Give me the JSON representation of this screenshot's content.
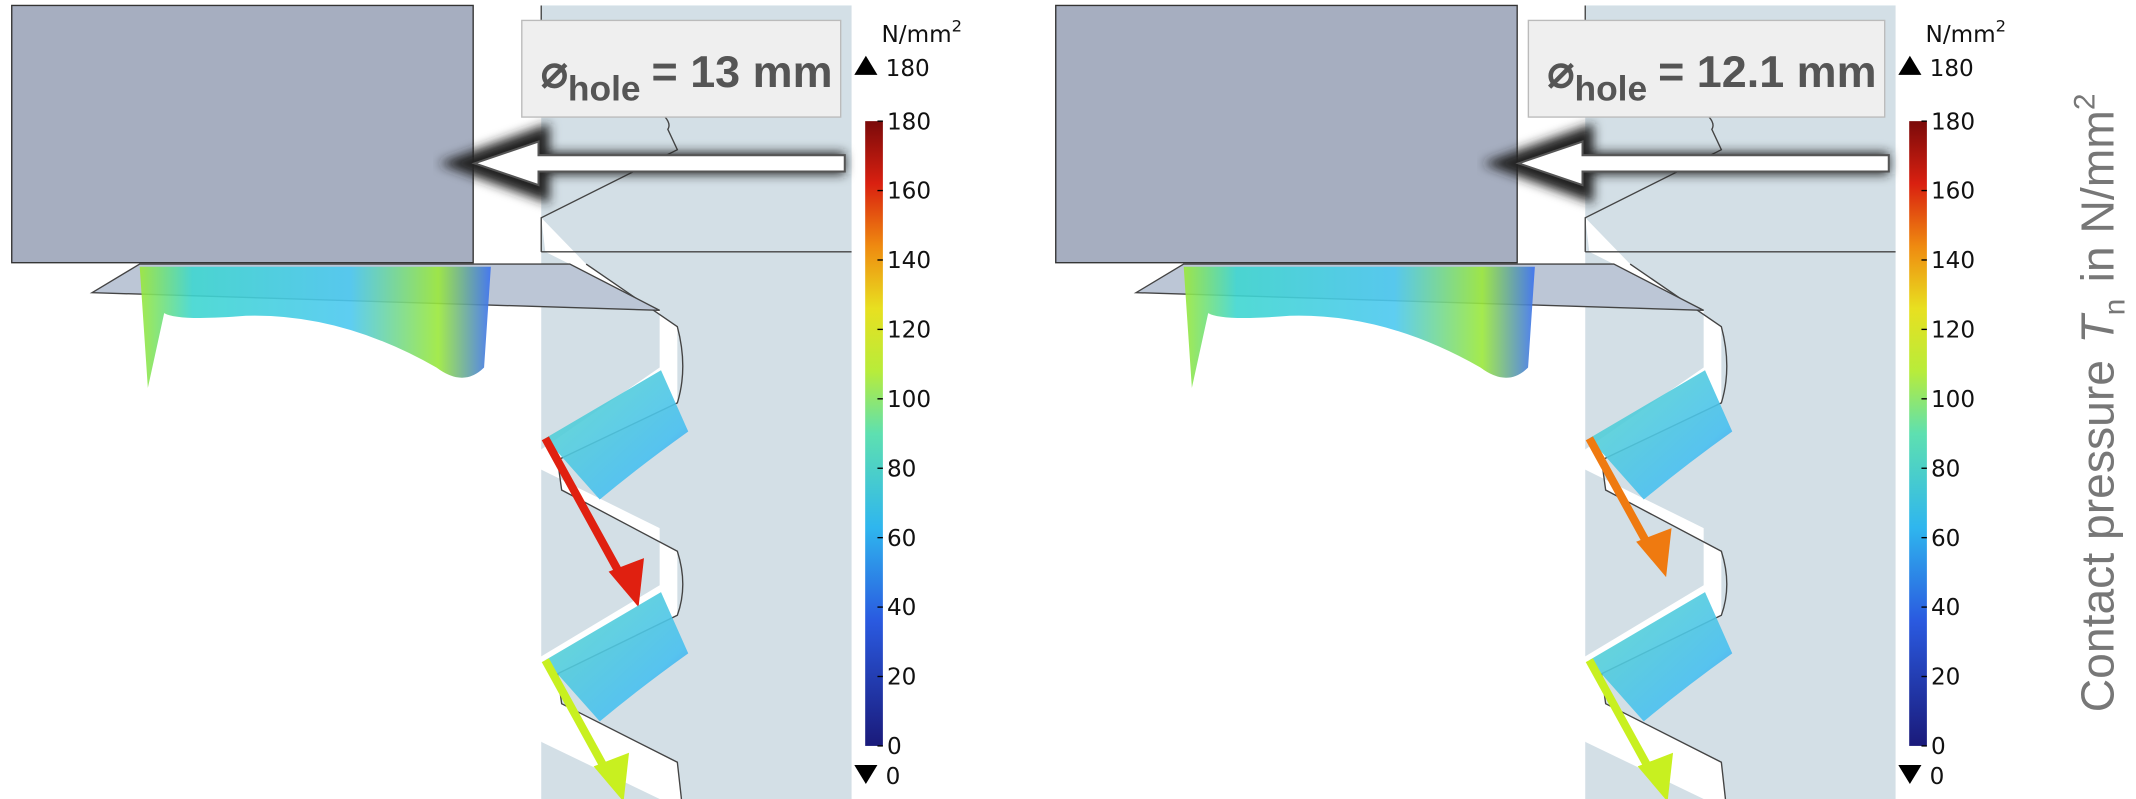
{
  "panels": [
    {
      "label": {
        "symbol": "⌀",
        "subscript": "hole",
        "text": "= 13 mm"
      },
      "colorbar": {
        "unit": "N/mm",
        "unit_exponent": "2",
        "max": 180,
        "min": 0,
        "ticks": [
          180,
          160,
          140,
          120,
          100,
          80,
          60,
          40,
          20,
          0
        ]
      }
    },
    {
      "label": {
        "symbol": "⌀",
        "subscript": "hole",
        "text": "= 12.1 mm"
      },
      "colorbar": {
        "unit": "N/mm",
        "unit_exponent": "2",
        "max": 180,
        "min": 0,
        "ticks": [
          180,
          160,
          140,
          120,
          100,
          80,
          60,
          40,
          20,
          0
        ]
      }
    }
  ],
  "side_label": {
    "text": "Contact pressure",
    "symbol": "T",
    "subscript": "n",
    "unit": "in N/mm",
    "unit_exponent": "2"
  }
}
